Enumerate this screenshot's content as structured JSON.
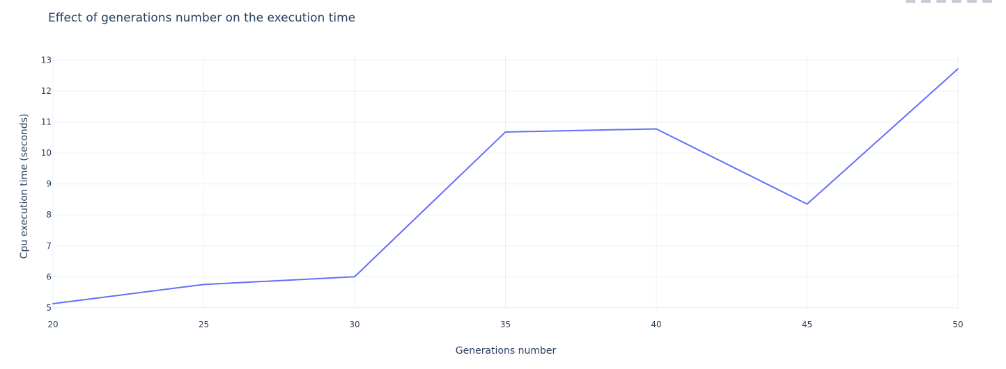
{
  "chart_data": {
    "type": "line",
    "title": "Effect of generations number on the execution time",
    "xlabel": "Generations number",
    "ylabel": "Cpu execution time (seconds)",
    "x": [
      20,
      25,
      30,
      35,
      40,
      45,
      50
    ],
    "series": [
      {
        "values": [
          5.13,
          5.75,
          6.0,
          10.68,
          10.78,
          8.35,
          12.72
        ],
        "color": "#636efa"
      }
    ],
    "xlim": [
      20,
      50
    ],
    "ylim": [
      4.95,
      13.15
    ],
    "xticks": [
      20,
      25,
      30,
      35,
      40,
      45,
      50
    ],
    "yticks": [
      5,
      6,
      7,
      8,
      9,
      10,
      11,
      12,
      13
    ],
    "grid": true,
    "background": "#ffffff",
    "grid_color": "#ebf0f8",
    "text_color": "#2a3f5f"
  },
  "modebar": {
    "icons": [
      "zoom-icon",
      "pan-icon",
      "zoom-in-icon",
      "zoom-out-icon",
      "autoscale-icon",
      "reset-icon"
    ]
  }
}
